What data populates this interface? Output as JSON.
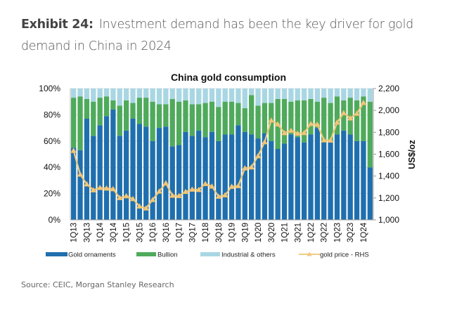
{
  "header": {
    "exhibit": "Exhibit 24:",
    "title": "Investment demand has been the key driver for gold demand in China in 2024"
  },
  "source": "Source: CEIC, Morgan Stanley Research",
  "chart_data": {
    "type": "bar",
    "stacked": true,
    "title": "China gold consumption",
    "xlabel": "",
    "ylabel": "",
    "y2label": "US$/oz",
    "ylim": [
      0,
      100
    ],
    "y2lim": [
      1000,
      2200
    ],
    "y_ticks": [
      "0%",
      "20%",
      "40%",
      "60%",
      "80%",
      "100%"
    ],
    "y2_ticks": [
      "1,000",
      "1,200",
      "1,400",
      "1,600",
      "1,800",
      "2,000",
      "2,200"
    ],
    "grid": true,
    "legend": "bottom",
    "categories": [
      "1Q13",
      "2Q13",
      "3Q13",
      "4Q13",
      "1Q14",
      "2Q14",
      "3Q14",
      "4Q14",
      "1Q15",
      "2Q15",
      "3Q15",
      "4Q15",
      "1Q16",
      "2Q16",
      "3Q16",
      "4Q16",
      "1Q17",
      "2Q17",
      "3Q17",
      "4Q17",
      "1Q18",
      "2Q18",
      "3Q18",
      "4Q18",
      "1Q19",
      "2Q19",
      "3Q19",
      "4Q19",
      "1Q20",
      "2Q20",
      "3Q20",
      "4Q20",
      "1Q21",
      "2Q21",
      "3Q21",
      "4Q21",
      "1Q22",
      "2Q22",
      "3Q22",
      "4Q22",
      "1Q23",
      "2Q23",
      "3Q23",
      "4Q23",
      "1Q24",
      "2Q24"
    ],
    "tick_labels": [
      "1Q13",
      "3Q13",
      "1Q14",
      "3Q14",
      "1Q15",
      "3Q15",
      "1Q16",
      "3Q16",
      "1Q17",
      "3Q17",
      "1Q18",
      "3Q18",
      "1Q19",
      "3Q19",
      "1Q20",
      "3Q20",
      "1Q21",
      "3Q21",
      "1Q22",
      "3Q22",
      "1Q23",
      "3Q23",
      "1Q24"
    ],
    "series": [
      {
        "name": "Gold ornaments",
        "color": "#1f6fae",
        "axis": "left",
        "values": [
          55,
          53,
          77,
          64,
          72,
          79,
          84,
          64,
          68,
          77,
          73,
          71,
          60,
          70,
          71,
          56,
          57,
          67,
          64,
          68,
          63,
          67,
          60,
          65,
          65,
          72,
          67,
          65,
          62,
          66,
          60,
          54,
          58,
          65,
          63,
          59,
          65,
          70,
          59,
          59,
          65,
          68,
          65,
          60,
          60,
          40
        ]
      },
      {
        "name": "Bullion",
        "color": "#4faa5c",
        "axis": "left",
        "values": [
          38,
          41,
          15,
          26,
          21,
          15,
          7,
          23,
          23,
          12,
          20,
          22,
          30,
          18,
          17,
          36,
          33,
          24,
          24,
          20,
          26,
          23,
          26,
          25,
          25,
          17,
          18,
          30,
          25,
          23,
          29,
          38,
          34,
          25,
          28,
          32,
          27,
          20,
          34,
          30,
          29,
          23,
          28,
          31,
          34,
          50
        ]
      },
      {
        "name": "Industrial & others",
        "color": "#a9d6e3",
        "axis": "left",
        "values": [
          7,
          6,
          8,
          10,
          7,
          6,
          9,
          13,
          9,
          11,
          7,
          7,
          10,
          12,
          12,
          8,
          10,
          9,
          12,
          12,
          11,
          10,
          14,
          10,
          10,
          11,
          15,
          5,
          13,
          11,
          11,
          8,
          8,
          10,
          9,
          9,
          8,
          10,
          7,
          11,
          6,
          9,
          7,
          9,
          6,
          10
        ]
      },
      {
        "name": "gold price - RHS",
        "color": "#f2cc80",
        "axis": "right",
        "type": "line",
        "values": [
          1632,
          1415,
          1326,
          1272,
          1293,
          1288,
          1282,
          1201,
          1218,
          1192,
          1124,
          1106,
          1183,
          1260,
          1335,
          1222,
          1219,
          1257,
          1278,
          1275,
          1329,
          1306,
          1213,
          1226,
          1304,
          1310,
          1472,
          1481,
          1583,
          1711,
          1909,
          1874,
          1794,
          1816,
          1789,
          1795,
          1877,
          1871,
          1729,
          1726,
          1890,
          1976,
          1928,
          1971,
          2070,
          null
        ]
      }
    ]
  }
}
